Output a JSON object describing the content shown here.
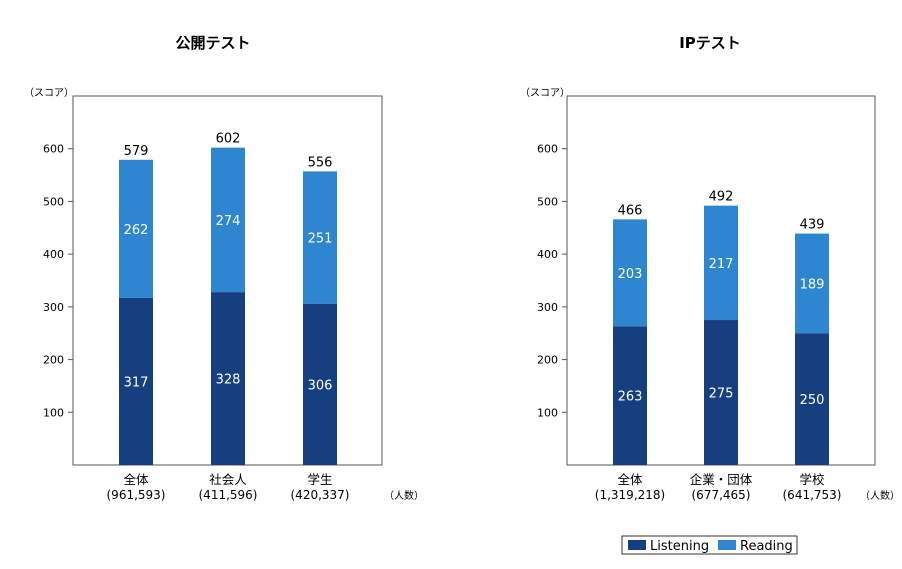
{
  "colors": {
    "listening": "#163f80",
    "reading": "#2d86cf"
  },
  "legend": {
    "listening": "Listening",
    "reading": "Reading"
  },
  "chart_data": [
    {
      "type": "bar",
      "stacked": true,
      "title": "公開テスト",
      "ylabel": "（スコア）",
      "count_unit": "（人数）",
      "ylim": [
        0,
        700
      ],
      "yticks": [
        100,
        200,
        300,
        400,
        500,
        600
      ],
      "categories": [
        "全体",
        "社会人",
        "学生"
      ],
      "counts": [
        "(961,593)",
        "(411,596)",
        "(420,337)"
      ],
      "totals": [
        579,
        602,
        556
      ],
      "series": [
        {
          "name": "Listening",
          "values": [
            317,
            328,
            306
          ]
        },
        {
          "name": "Reading",
          "values": [
            262,
            274,
            251
          ]
        }
      ]
    },
    {
      "type": "bar",
      "stacked": true,
      "title": "IPテスト",
      "ylabel": "（スコア）",
      "count_unit": "（人数）",
      "ylim": [
        0,
        700
      ],
      "yticks": [
        100,
        200,
        300,
        400,
        500,
        600
      ],
      "categories": [
        "全体",
        "企業・団体",
        "学校"
      ],
      "counts": [
        "(1,319,218)",
        "(677,465)",
        "(641,753)"
      ],
      "totals": [
        466,
        492,
        439
      ],
      "series": [
        {
          "name": "Listening",
          "values": [
            263,
            275,
            250
          ]
        },
        {
          "name": "Reading",
          "values": [
            203,
            217,
            189
          ]
        }
      ]
    }
  ]
}
